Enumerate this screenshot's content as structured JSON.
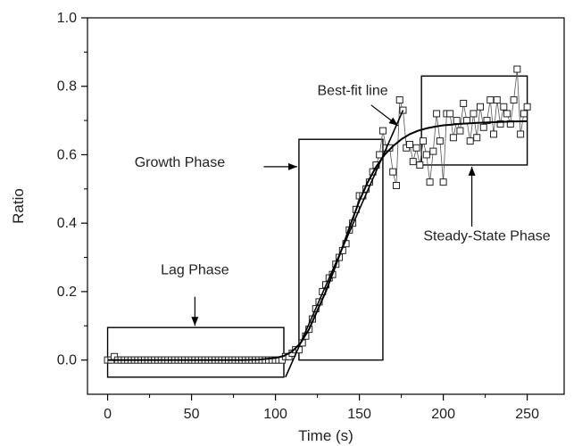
{
  "chart_data": {
    "type": "scatter",
    "title": "",
    "xlabel": "Time (s)",
    "ylabel": "Ratio",
    "xlim": [
      -12,
      272
    ],
    "ylim": [
      -0.1,
      1.0
    ],
    "xticks": [
      0,
      50,
      100,
      150,
      200,
      250
    ],
    "yticks": [
      0.0,
      0.2,
      0.4,
      0.6,
      0.8,
      1.0
    ],
    "grid": false,
    "colors": {
      "axis": "#000000",
      "marker": "#222222",
      "line": "#000000"
    },
    "series": [
      {
        "kind": "markers",
        "x": [
          0,
          2,
          4,
          6,
          8,
          10,
          12,
          14,
          16,
          18,
          20,
          22,
          24,
          26,
          28,
          30,
          32,
          34,
          36,
          38,
          40,
          42,
          44,
          46,
          48,
          50,
          52,
          54,
          56,
          58,
          60,
          62,
          64,
          66,
          68,
          70,
          72,
          74,
          76,
          78,
          80,
          82,
          84,
          86,
          88,
          90,
          92,
          94,
          96,
          98,
          100,
          102,
          104,
          106,
          108,
          110,
          112,
          114,
          116,
          118,
          120,
          122,
          124,
          126,
          128,
          130,
          132,
          134,
          136,
          138,
          140,
          142,
          144,
          146,
          148,
          150,
          152,
          154,
          156,
          158,
          160,
          162,
          164,
          166,
          168,
          170,
          172,
          174,
          176,
          178,
          180,
          182,
          184,
          186,
          188,
          190,
          192,
          194,
          196,
          198,
          200,
          202,
          204,
          206,
          208,
          210,
          212,
          214,
          216,
          218,
          220,
          222,
          224,
          226,
          228,
          230,
          232,
          234,
          236,
          238,
          240,
          242,
          244,
          246,
          248,
          250
        ],
        "y": [
          0.0,
          0.0,
          0.01,
          0.0,
          0.0,
          0.0,
          0.0,
          0.0,
          0.0,
          0.0,
          0.0,
          0.0,
          0.0,
          0.0,
          0.0,
          0.0,
          0.0,
          0.0,
          0.0,
          0.0,
          0.0,
          0.0,
          0.0,
          0.0,
          0.0,
          0.0,
          0.0,
          0.0,
          0.0,
          0.0,
          0.0,
          0.0,
          0.0,
          0.0,
          0.0,
          0.0,
          0.0,
          0.0,
          0.0,
          0.0,
          0.0,
          0.0,
          0.0,
          0.0,
          0.0,
          0.0,
          0.0,
          0.0,
          0.0,
          0.0,
          0.0,
          0.0,
          0.0,
          0.01,
          0.01,
          0.02,
          0.03,
          0.03,
          0.05,
          0.07,
          0.09,
          0.12,
          0.15,
          0.17,
          0.2,
          0.22,
          0.24,
          0.25,
          0.28,
          0.3,
          0.32,
          0.34,
          0.38,
          0.4,
          0.44,
          0.48,
          0.48,
          0.5,
          0.52,
          0.55,
          0.57,
          0.6,
          0.67,
          0.62,
          0.62,
          0.55,
          0.51,
          0.76,
          0.73,
          0.62,
          0.63,
          0.58,
          0.62,
          0.57,
          0.64,
          0.6,
          0.52,
          0.61,
          0.72,
          0.64,
          0.52,
          0.72,
          0.72,
          0.65,
          0.7,
          0.67,
          0.75,
          0.7,
          0.64,
          0.72,
          0.65,
          0.74,
          0.68,
          0.7,
          0.76,
          0.66,
          0.76,
          0.69,
          0.74,
          0.72,
          0.69,
          0.76,
          0.85,
          0.66,
          0.72,
          0.74
        ]
      },
      {
        "kind": "fit",
        "x": [
          0,
          20,
          40,
          60,
          80,
          90,
          100,
          105,
          110,
          115,
          120,
          125,
          130,
          135,
          140,
          145,
          150,
          155,
          160,
          165,
          170,
          175,
          180,
          185,
          190,
          195,
          200,
          210,
          220,
          230,
          240,
          250
        ],
        "y": [
          0.0,
          0.0,
          0.0,
          0.0,
          0.0,
          0.001,
          0.006,
          0.012,
          0.025,
          0.05,
          0.09,
          0.145,
          0.2,
          0.265,
          0.33,
          0.4,
          0.465,
          0.52,
          0.565,
          0.6,
          0.625,
          0.645,
          0.66,
          0.67,
          0.677,
          0.682,
          0.686,
          0.69,
          0.693,
          0.695,
          0.697,
          0.698
        ]
      },
      {
        "kind": "tangent",
        "x": [
          106,
          176
        ],
        "y": [
          -0.05,
          0.73
        ]
      }
    ],
    "regions": [
      {
        "name": "lag",
        "x0": 0,
        "x1": 105,
        "y0": -0.05,
        "y1": 0.095
      },
      {
        "name": "growth",
        "x0": 114,
        "x1": 164,
        "y0": 0.0,
        "y1": 0.645
      },
      {
        "name": "steady",
        "x0": 187,
        "x1": 250,
        "y0": 0.57,
        "y1": 0.83
      }
    ],
    "annotations": [
      {
        "text": "Lag Phase",
        "text_x": 52,
        "text_y": 0.25,
        "arrow_from": [
          52,
          0.185
        ],
        "arrow_to": [
          52,
          0.1
        ]
      },
      {
        "text": "Growth Phase",
        "text_x": 43,
        "text_y": 0.565,
        "arrow_from": [
          93,
          0.565
        ],
        "arrow_to": [
          113,
          0.565
        ]
      },
      {
        "text": "Best-fit line",
        "text_x": 146,
        "text_y": 0.775,
        "arrow_from": [
          157,
          0.745
        ],
        "arrow_to": [
          173,
          0.685
        ]
      },
      {
        "text": "Steady-State Phase",
        "text_x": 226,
        "text_y": 0.35,
        "arrow_from": [
          217,
          0.39
        ],
        "arrow_to": [
          217,
          0.565
        ]
      }
    ]
  }
}
